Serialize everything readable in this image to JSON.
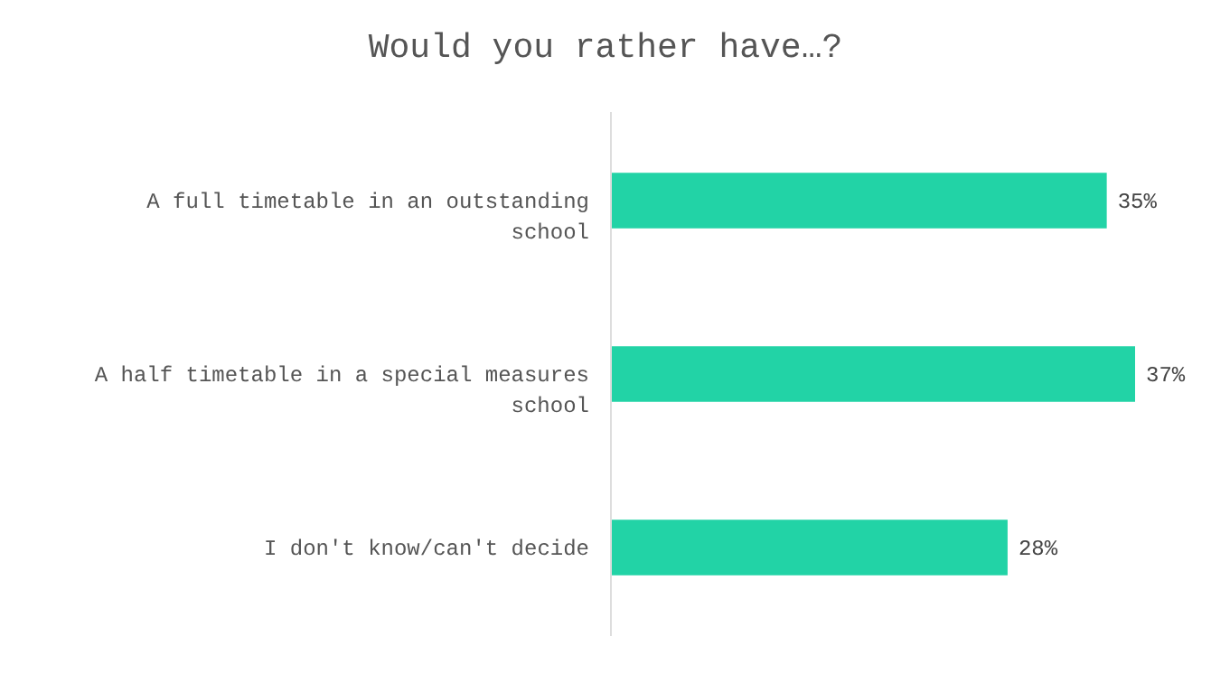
{
  "chart_data": {
    "type": "bar",
    "orientation": "horizontal",
    "title": "Would you rather have…?",
    "categories": [
      "A full timetable in an outstanding school",
      "A half timetable in a special measures school",
      "I don't know/can't decide"
    ],
    "values": [
      35,
      37,
      28
    ],
    "value_labels": [
      "35%",
      "37%",
      "28%"
    ],
    "color": "#22d3a6"
  }
}
